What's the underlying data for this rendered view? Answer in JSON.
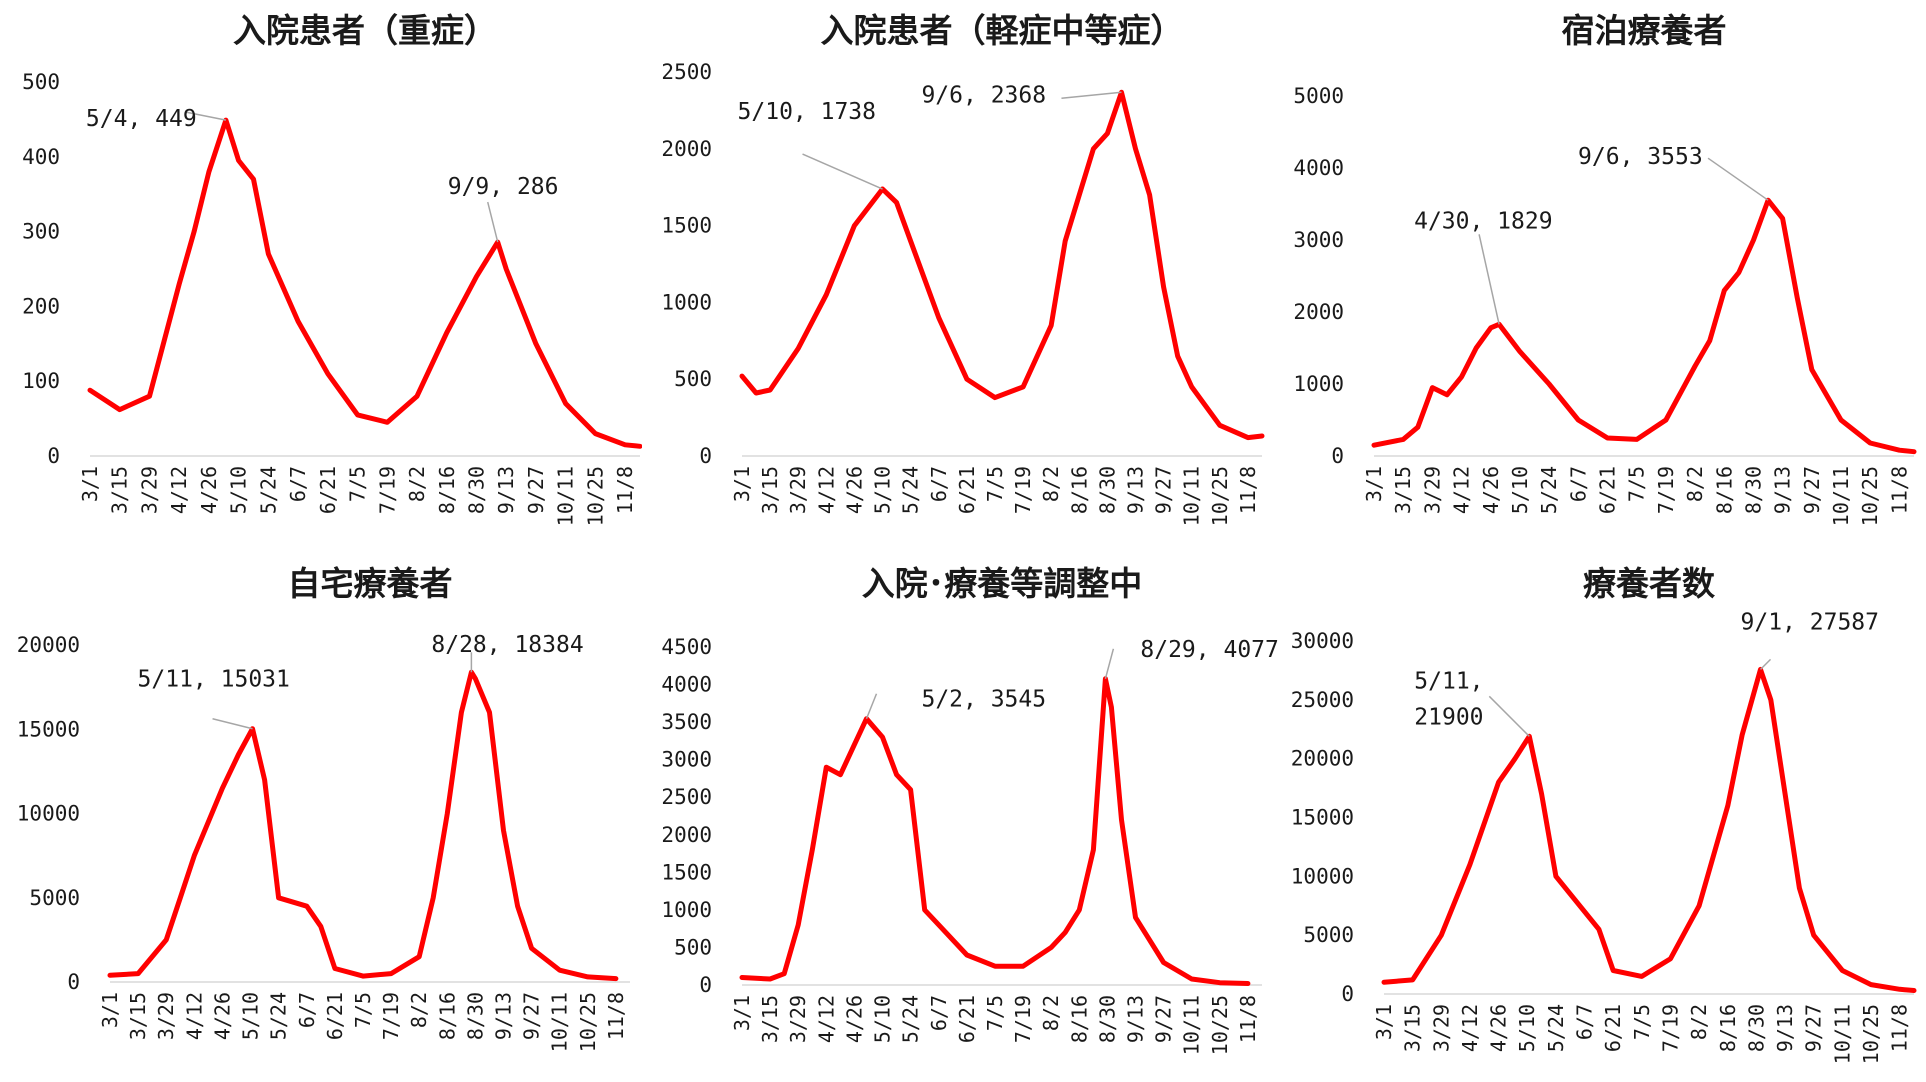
{
  "chart_data": [
    {
      "type": "line",
      "title": "入院患者（重症）",
      "ylim": [
        0,
        500
      ],
      "yticks": [
        0,
        100,
        200,
        300,
        400,
        500
      ],
      "x_tick_labels": [
        "3/1",
        "3/15",
        "3/29",
        "4/12",
        "4/26",
        "5/10",
        "5/24",
        "6/7",
        "6/21",
        "7/5",
        "7/19",
        "8/2",
        "8/16",
        "8/30",
        "9/13",
        "9/27",
        "10/11",
        "10/25",
        "11/8"
      ],
      "color": "#ff0000",
      "series": [
        {
          "x": [
            "3/1",
            "3/15",
            "3/29",
            "4/12",
            "4/19",
            "4/26",
            "5/4",
            "5/10",
            "5/17",
            "5/24",
            "6/7",
            "6/21",
            "7/5",
            "7/19",
            "8/2",
            "8/16",
            "8/30",
            "9/9",
            "9/13",
            "9/27",
            "10/11",
            "10/25",
            "11/8",
            "11/15"
          ],
          "values": [
            88,
            62,
            80,
            230,
            300,
            380,
            449,
            395,
            370,
            270,
            180,
            110,
            55,
            45,
            80,
            165,
            240,
            286,
            250,
            150,
            70,
            30,
            15,
            13
          ]
        }
      ],
      "annotations": [
        {
          "text": "5/4, 449",
          "x": "5/4",
          "value": 449
        },
        {
          "text": "9/9, 286",
          "x": "9/9",
          "value": 286
        }
      ]
    },
    {
      "type": "line",
      "title": "入院患者（軽症中等症）",
      "ylim": [
        0,
        2500
      ],
      "yticks": [
        0,
        500,
        1000,
        1500,
        2000,
        2500
      ],
      "x_tick_labels": [
        "3/1",
        "3/15",
        "3/29",
        "4/12",
        "4/26",
        "5/10",
        "5/24",
        "6/7",
        "6/21",
        "7/5",
        "7/19",
        "8/2",
        "8/16",
        "8/30",
        "9/13",
        "9/27",
        "10/11",
        "10/25",
        "11/8"
      ],
      "color": "#ff0000",
      "series": [
        {
          "x": [
            "3/1",
            "3/8",
            "3/15",
            "3/29",
            "4/12",
            "4/26",
            "5/10",
            "5/17",
            "5/24",
            "6/7",
            "6/21",
            "7/5",
            "7/19",
            "8/2",
            "8/9",
            "8/16",
            "8/23",
            "8/30",
            "9/6",
            "9/13",
            "9/20",
            "9/27",
            "10/4",
            "10/11",
            "10/25",
            "11/8",
            "11/15"
          ],
          "values": [
            520,
            410,
            430,
            700,
            1050,
            1500,
            1738,
            1650,
            1400,
            900,
            500,
            380,
            450,
            850,
            1400,
            1700,
            2000,
            2100,
            2368,
            2000,
            1700,
            1100,
            650,
            450,
            200,
            120,
            130
          ]
        }
      ],
      "annotations": [
        {
          "text": "5/10, 1738",
          "x": "5/10",
          "value": 1738
        },
        {
          "text": "9/6, 2368",
          "x": "9/6",
          "value": 2368
        }
      ]
    },
    {
      "type": "line",
      "title": "宿泊療養者",
      "ylim": [
        0,
        5000
      ],
      "yticks": [
        0,
        1000,
        2000,
        3000,
        4000,
        5000
      ],
      "x_tick_labels": [
        "3/1",
        "3/15",
        "3/29",
        "4/12",
        "4/26",
        "5/10",
        "5/24",
        "6/7",
        "6/21",
        "7/5",
        "7/19",
        "8/2",
        "8/16",
        "8/30",
        "9/13",
        "9/27",
        "10/11",
        "10/25",
        "11/8"
      ],
      "color": "#ff0000",
      "series": [
        {
          "x": [
            "3/1",
            "3/15",
            "3/22",
            "3/29",
            "4/5",
            "4/12",
            "4/19",
            "4/26",
            "4/30",
            "5/10",
            "5/24",
            "6/7",
            "6/21",
            "7/5",
            "7/19",
            "8/2",
            "8/9",
            "8/16",
            "8/23",
            "8/30",
            "9/6",
            "9/13",
            "9/20",
            "9/27",
            "10/11",
            "10/25",
            "11/8",
            "11/15"
          ],
          "values": [
            150,
            230,
            400,
            950,
            850,
            1100,
            1500,
            1780,
            1829,
            1450,
            1000,
            500,
            250,
            230,
            500,
            1250,
            1600,
            2300,
            2550,
            3000,
            3553,
            3300,
            2200,
            1200,
            500,
            180,
            80,
            60
          ]
        }
      ],
      "annotations": [
        {
          "text": "4/30, 1829",
          "x": "4/30",
          "value": 1829
        },
        {
          "text": "9/6, 3553",
          "x": "9/6",
          "value": 3553
        }
      ]
    },
    {
      "type": "line",
      "title": "自宅療養者",
      "ylim": [
        0,
        20000
      ],
      "yticks": [
        0,
        5000,
        10000,
        15000,
        20000
      ],
      "x_tick_labels": [
        "3/1",
        "3/15",
        "3/29",
        "4/12",
        "4/26",
        "5/10",
        "5/24",
        "6/7",
        "6/21",
        "7/5",
        "7/19",
        "8/2",
        "8/16",
        "8/30",
        "9/13",
        "9/27",
        "10/11",
        "10/25",
        "11/8"
      ],
      "color": "#ff0000",
      "series": [
        {
          "x": [
            "3/1",
            "3/15",
            "3/29",
            "4/5",
            "4/12",
            "4/26",
            "5/4",
            "5/11",
            "5/17",
            "5/24",
            "6/7",
            "6/14",
            "6/21",
            "7/5",
            "7/19",
            "8/2",
            "8/9",
            "8/16",
            "8/23",
            "8/28",
            "8/30",
            "9/6",
            "9/13",
            "9/20",
            "9/27",
            "10/11",
            "10/25",
            "11/8"
          ],
          "values": [
            400,
            500,
            2500,
            5000,
            7500,
            11500,
            13500,
            15031,
            12000,
            5000,
            4500,
            3300,
            800,
            350,
            500,
            1500,
            5000,
            10000,
            16000,
            18384,
            18000,
            16000,
            9000,
            4500,
            2000,
            700,
            300,
            200
          ]
        }
      ],
      "annotations": [
        {
          "text": "5/11, 15031",
          "x": "5/11",
          "value": 15031
        },
        {
          "text": "8/28, 18384",
          "x": "8/28",
          "value": 18384
        }
      ]
    },
    {
      "type": "line",
      "title": "入院･療養等調整中",
      "ylim": [
        0,
        4500
      ],
      "yticks": [
        0,
        500,
        1000,
        1500,
        2000,
        2500,
        3000,
        3500,
        4000,
        4500
      ],
      "x_tick_labels": [
        "3/1",
        "3/15",
        "3/29",
        "4/12",
        "4/26",
        "5/10",
        "5/24",
        "6/7",
        "6/21",
        "7/5",
        "7/19",
        "8/2",
        "8/16",
        "8/30",
        "9/13",
        "9/27",
        "10/11",
        "10/25",
        "11/8"
      ],
      "color": "#ff0000",
      "series": [
        {
          "x": [
            "3/1",
            "3/15",
            "3/22",
            "3/29",
            "4/5",
            "4/12",
            "4/19",
            "4/26",
            "5/2",
            "5/10",
            "5/17",
            "5/24",
            "5/31",
            "6/7",
            "6/21",
            "7/5",
            "7/19",
            "8/2",
            "8/9",
            "8/16",
            "8/23",
            "8/29",
            "9/1",
            "9/6",
            "9/13",
            "9/27",
            "10/11",
            "10/25",
            "11/8"
          ],
          "values": [
            100,
            80,
            150,
            800,
            1800,
            2900,
            2800,
            3200,
            3545,
            3300,
            2800,
            2600,
            1000,
            800,
            400,
            250,
            250,
            500,
            700,
            1000,
            1800,
            4077,
            3700,
            2200,
            900,
            300,
            80,
            30,
            20
          ]
        }
      ],
      "annotations": [
        {
          "text": "5/2, 3545",
          "x": "5/2",
          "value": 3545
        },
        {
          "text": "8/29, 4077",
          "x": "8/29",
          "value": 4077
        }
      ]
    },
    {
      "type": "line",
      "title": "療養者数",
      "ylim": [
        0,
        30000
      ],
      "yticks": [
        0,
        5000,
        10000,
        15000,
        20000,
        25000,
        30000
      ],
      "x_tick_labels": [
        "3/1",
        "3/15",
        "3/29",
        "4/12",
        "4/26",
        "5/10",
        "5/24",
        "6/7",
        "6/21",
        "7/5",
        "7/19",
        "8/2",
        "8/16",
        "8/30",
        "9/13",
        "9/27",
        "10/11",
        "10/25",
        "11/8"
      ],
      "color": "#ff0000",
      "series": [
        {
          "x": [
            "3/1",
            "3/15",
            "3/29",
            "4/12",
            "4/26",
            "5/4",
            "5/11",
            "5/17",
            "5/24",
            "6/7",
            "6/14",
            "6/21",
            "7/5",
            "7/19",
            "8/2",
            "8/16",
            "8/23",
            "9/1",
            "9/6",
            "9/13",
            "9/20",
            "9/27",
            "10/11",
            "10/25",
            "11/8",
            "11/15"
          ],
          "values": [
            1000,
            1200,
            5000,
            11000,
            18000,
            20000,
            21900,
            17000,
            10000,
            7000,
            5500,
            2000,
            1500,
            3000,
            7500,
            16000,
            22000,
            27587,
            25000,
            17000,
            9000,
            5000,
            2000,
            800,
            400,
            300
          ]
        }
      ],
      "annotations": [
        {
          "text": "5/11,\n21900",
          "x": "5/11",
          "value": 21900
        },
        {
          "text": "9/1, 27587",
          "x": "9/1",
          "value": 27587
        }
      ]
    }
  ]
}
